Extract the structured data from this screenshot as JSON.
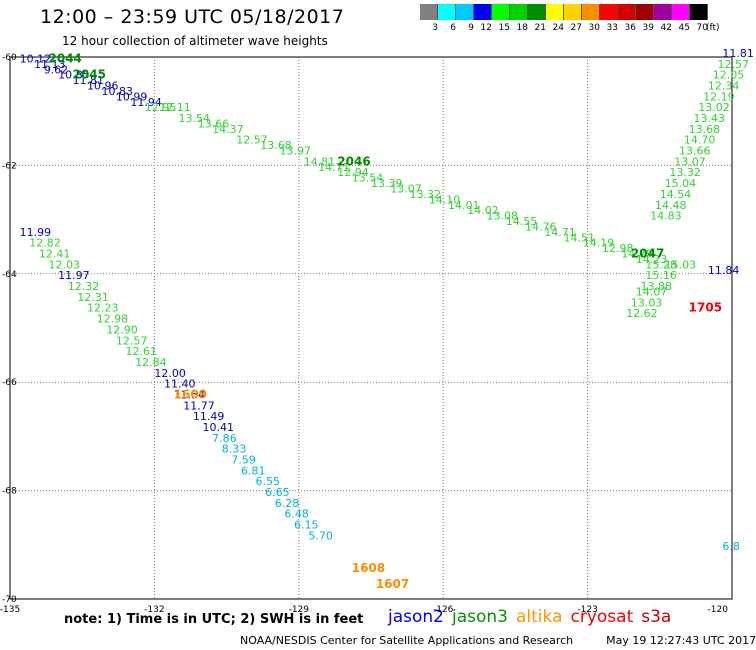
{
  "header": {
    "title": "12:00 – 23:59 UTC 05/18/2017",
    "subtitle": "12 hour collection of altimeter wave heights"
  },
  "color_scale": {
    "unit_label": "(ft)",
    "bins": [
      {
        "label": "3",
        "color": "#808080"
      },
      {
        "label": "6",
        "color": "#00ffff"
      },
      {
        "label": "9",
        "color": "#00c8ff"
      },
      {
        "label": "12",
        "color": "#0000ff"
      },
      {
        "label": "15",
        "color": "#00ff00"
      },
      {
        "label": "18",
        "color": "#00d200"
      },
      {
        "label": "21",
        "color": "#008c00"
      },
      {
        "label": "24",
        "color": "#ffff00"
      },
      {
        "label": "27",
        "color": "#ffd200"
      },
      {
        "label": "30",
        "color": "#ff8c00"
      },
      {
        "label": "33",
        "color": "#ff0000"
      },
      {
        "label": "36",
        "color": "#d20000"
      },
      {
        "label": "39",
        "color": "#a00000"
      },
      {
        "label": "42",
        "color": "#a000a0"
      },
      {
        "label": "45",
        "color": "#ff00ff"
      },
      {
        "label": "70",
        "color": "#000000"
      }
    ]
  },
  "map": {
    "lon_ticks": [
      "-135",
      "-132",
      "-129",
      "-126",
      "-123",
      "-120"
    ],
    "lat_ticks": [
      "-60",
      "-62",
      "-64",
      "-66",
      "-68",
      "-70"
    ],
    "time_labels": [
      {
        "text": "2044",
        "sat": "jason3",
        "lon": -134.2,
        "lat": -60.1
      },
      {
        "text": "2045",
        "sat": "jason3",
        "lon": -133.7,
        "lat": -60.4
      },
      {
        "text": "2046",
        "sat": "jason3",
        "lon": -128.2,
        "lat": -62.0
      },
      {
        "text": "2047",
        "sat": "jason3",
        "lon": -122.1,
        "lat": -63.7
      },
      {
        "text": "1609",
        "sat": "altika",
        "lon": -131.6,
        "lat": -66.3
      },
      {
        "text": "1608",
        "sat": "altika",
        "lon": -127.9,
        "lat": -69.5
      },
      {
        "text": "1607",
        "sat": "altika",
        "lon": -127.4,
        "lat": -69.8
      },
      {
        "text": "1705",
        "sat": "cryosat",
        "lon": -120.9,
        "lat": -64.7
      }
    ],
    "tracks": [
      {
        "sat": "jason2",
        "points": [
          {
            "v": "10.12",
            "lon": -134.8,
            "lat": -60.1
          },
          {
            "v": "11.13",
            "lon": -134.5,
            "lat": -60.2
          },
          {
            "v": "9.62",
            "lon": -134.3,
            "lat": -60.3
          },
          {
            "v": "10.85",
            "lon": -134.0,
            "lat": -60.4
          },
          {
            "v": "11.81",
            "lon": -133.7,
            "lat": -60.5
          },
          {
            "v": "10.96",
            "lon": -133.4,
            "lat": -60.6
          },
          {
            "v": "10.83",
            "lon": -133.1,
            "lat": -60.7
          },
          {
            "v": "10.99",
            "lon": -132.8,
            "lat": -60.8
          },
          {
            "v": "11.94",
            "lon": -132.5,
            "lat": -60.9
          }
        ]
      },
      {
        "sat": "jason3",
        "points": [
          {
            "v": "12.11",
            "lon": -131.9,
            "lat": -61.0
          },
          {
            "v": "12.95",
            "lon": -132.2,
            "lat": -61.0
          },
          {
            "v": "13.54",
            "lon": -131.5,
            "lat": -61.2
          },
          {
            "v": "13.66",
            "lon": -131.1,
            "lat": -61.3
          },
          {
            "v": "14.37",
            "lon": -130.8,
            "lat": -61.4
          },
          {
            "v": "12.57",
            "lon": -130.3,
            "lat": -61.6
          },
          {
            "v": "13.68",
            "lon": -129.8,
            "lat": -61.7
          },
          {
            "v": "13.97",
            "lon": -129.4,
            "lat": -61.8
          },
          {
            "v": "14.81",
            "lon": -128.9,
            "lat": -62.0
          },
          {
            "v": "14.71",
            "lon": -128.6,
            "lat": -62.1
          },
          {
            "v": "12.94",
            "lon": -128.2,
            "lat": -62.2
          },
          {
            "v": "13.54",
            "lon": -127.9,
            "lat": -62.3
          },
          {
            "v": "13.39",
            "lon": -127.5,
            "lat": -62.4
          },
          {
            "v": "13.07",
            "lon": -127.1,
            "lat": -62.5
          },
          {
            "v": "13.32",
            "lon": -126.7,
            "lat": -62.6
          },
          {
            "v": "14.10",
            "lon": -126.3,
            "lat": -62.7
          },
          {
            "v": "14.01",
            "lon": -125.9,
            "lat": -62.8
          },
          {
            "v": "14.02",
            "lon": -125.5,
            "lat": -62.9
          },
          {
            "v": "13.08",
            "lon": -125.1,
            "lat": -63.0
          },
          {
            "v": "14.55",
            "lon": -124.7,
            "lat": -63.1
          },
          {
            "v": "14.76",
            "lon": -124.3,
            "lat": -63.2
          },
          {
            "v": "14.71",
            "lon": -123.9,
            "lat": -63.3
          },
          {
            "v": "14.51",
            "lon": -123.5,
            "lat": -63.4
          },
          {
            "v": "14.19",
            "lon": -123.1,
            "lat": -63.5
          },
          {
            "v": "12.98",
            "lon": -122.7,
            "lat": -63.6
          },
          {
            "v": "14.79",
            "lon": -122.3,
            "lat": -63.7
          },
          {
            "v": "14.23",
            "lon": -122.0,
            "lat": -63.8
          },
          {
            "v": "15.28",
            "lon": -121.8,
            "lat": -63.9
          },
          {
            "v": "15.16",
            "lon": -121.8,
            "lat": -64.1
          },
          {
            "v": "13.88",
            "lon": -121.9,
            "lat": -64.3
          },
          {
            "v": "14.07",
            "lon": -122.0,
            "lat": -64.4
          },
          {
            "v": "13.03",
            "lon": -122.1,
            "lat": -64.6
          },
          {
            "v": "12.62",
            "lon": -122.2,
            "lat": -64.8
          },
          {
            "v": "12.57",
            "lon": -120.3,
            "lat": -60.2
          },
          {
            "v": "12.05",
            "lon": -120.4,
            "lat": -60.4
          },
          {
            "v": "12.34",
            "lon": -120.5,
            "lat": -60.6
          },
          {
            "v": "12.19",
            "lon": -120.6,
            "lat": -60.8
          },
          {
            "v": "13.02",
            "lon": -120.7,
            "lat": -61.0
          },
          {
            "v": "13.43",
            "lon": -120.8,
            "lat": -61.2
          },
          {
            "v": "13.68",
            "lon": -120.9,
            "lat": -61.4
          },
          {
            "v": "14.70",
            "lon": -121.0,
            "lat": -61.6
          },
          {
            "v": "13.66",
            "lon": -121.1,
            "lat": -61.8
          },
          {
            "v": "13.07",
            "lon": -121.2,
            "lat": -62.0
          },
          {
            "v": "13.32",
            "lon": -121.3,
            "lat": -62.2
          },
          {
            "v": "15.04",
            "lon": -121.4,
            "lat": -62.4
          },
          {
            "v": "14.54",
            "lon": -121.5,
            "lat": -62.6
          },
          {
            "v": "14.48",
            "lon": -121.6,
            "lat": -62.8
          },
          {
            "v": "14.83",
            "lon": -121.7,
            "lat": -63.0
          },
          {
            "v": "15.03",
            "lon": -121.4,
            "lat": -63.9
          },
          {
            "v": "12.82",
            "lon": -134.6,
            "lat": -63.5
          },
          {
            "v": "12.41",
            "lon": -134.4,
            "lat": -63.7
          },
          {
            "v": "12.03",
            "lon": -134.2,
            "lat": -63.9
          },
          {
            "v": "12.32",
            "lon": -133.8,
            "lat": -64.3
          },
          {
            "v": "12.31",
            "lon": -133.6,
            "lat": -64.5
          },
          {
            "v": "12.23",
            "lon": -133.4,
            "lat": -64.7
          },
          {
            "v": "12.98",
            "lon": -133.2,
            "lat": -64.9
          },
          {
            "v": "12.90",
            "lon": -133.0,
            "lat": -65.1
          },
          {
            "v": "12.57",
            "lon": -132.8,
            "lat": -65.3
          },
          {
            "v": "12.61",
            "lon": -132.6,
            "lat": -65.5
          },
          {
            "v": "12.84",
            "lon": -132.4,
            "lat": -65.7
          }
        ]
      },
      {
        "sat": "jason2",
        "points": [
          {
            "v": "11.99",
            "lon": -134.8,
            "lat": -63.3
          },
          {
            "v": "11.97",
            "lon": -134.0,
            "lat": -64.1
          },
          {
            "v": "12.00",
            "lon": -132.0,
            "lat": -65.9
          },
          {
            "v": "11.40",
            "lon": -131.8,
            "lat": -66.1
          },
          {
            "v": "11.54",
            "lon": -131.6,
            "lat": -66.3
          },
          {
            "v": "11.77",
            "lon": -131.4,
            "lat": -66.5
          },
          {
            "v": "11.49",
            "lon": -131.2,
            "lat": -66.7
          },
          {
            "v": "10.41",
            "lon": -131.0,
            "lat": -66.9
          },
          {
            "v": "11.81",
            "lon": -120.2,
            "lat": -60.0
          },
          {
            "v": "11.84",
            "lon": -120.5,
            "lat": -64.0
          }
        ]
      },
      {
        "sat": "s3a",
        "points": [
          {
            "v": "7.86",
            "lon": -130.8,
            "lat": -67.1
          },
          {
            "v": "8.33",
            "lon": -130.6,
            "lat": -67.3
          },
          {
            "v": "7.59",
            "lon": -130.4,
            "lat": -67.5
          },
          {
            "v": "6.81",
            "lon": -130.2,
            "lat": -67.7
          },
          {
            "v": "6.55",
            "lon": -129.9,
            "lat": -67.9
          },
          {
            "v": "6.65",
            "lon": -129.7,
            "lat": -68.1
          },
          {
            "v": "6.28",
            "lon": -129.5,
            "lat": -68.3
          },
          {
            "v": "6.48",
            "lon": -129.3,
            "lat": -68.5
          },
          {
            "v": "6.15",
            "lon": -129.1,
            "lat": -68.7
          },
          {
            "v": "5.70",
            "lon": -128.8,
            "lat": -68.9
          },
          {
            "v": "6.8",
            "lon": -120.2,
            "lat": -69.1
          }
        ]
      }
    ]
  },
  "footer": {
    "note": "note: 1) Time is in UTC; 2) SWH is in feet",
    "satellites": [
      {
        "label": "jason2",
        "color": "#0000ff"
      },
      {
        "label": "jason3",
        "color": "#009600"
      },
      {
        "label": "altika",
        "color": "#ff9600"
      },
      {
        "label": "cryosat",
        "color": "#ff0000"
      },
      {
        "label": "s3a",
        "color": "#c80000"
      }
    ],
    "credit": "NOAA/NESDIS Center for Satellite Applications and Research",
    "timestamp": "May 19 12:27:43 UTC 2017"
  },
  "sat_colors": {
    "jason2": "#0000c8",
    "jason3": "#32d232",
    "altika": "#ff9600",
    "cryosat": "#ff0000",
    "s3a": "#00b4dc"
  }
}
